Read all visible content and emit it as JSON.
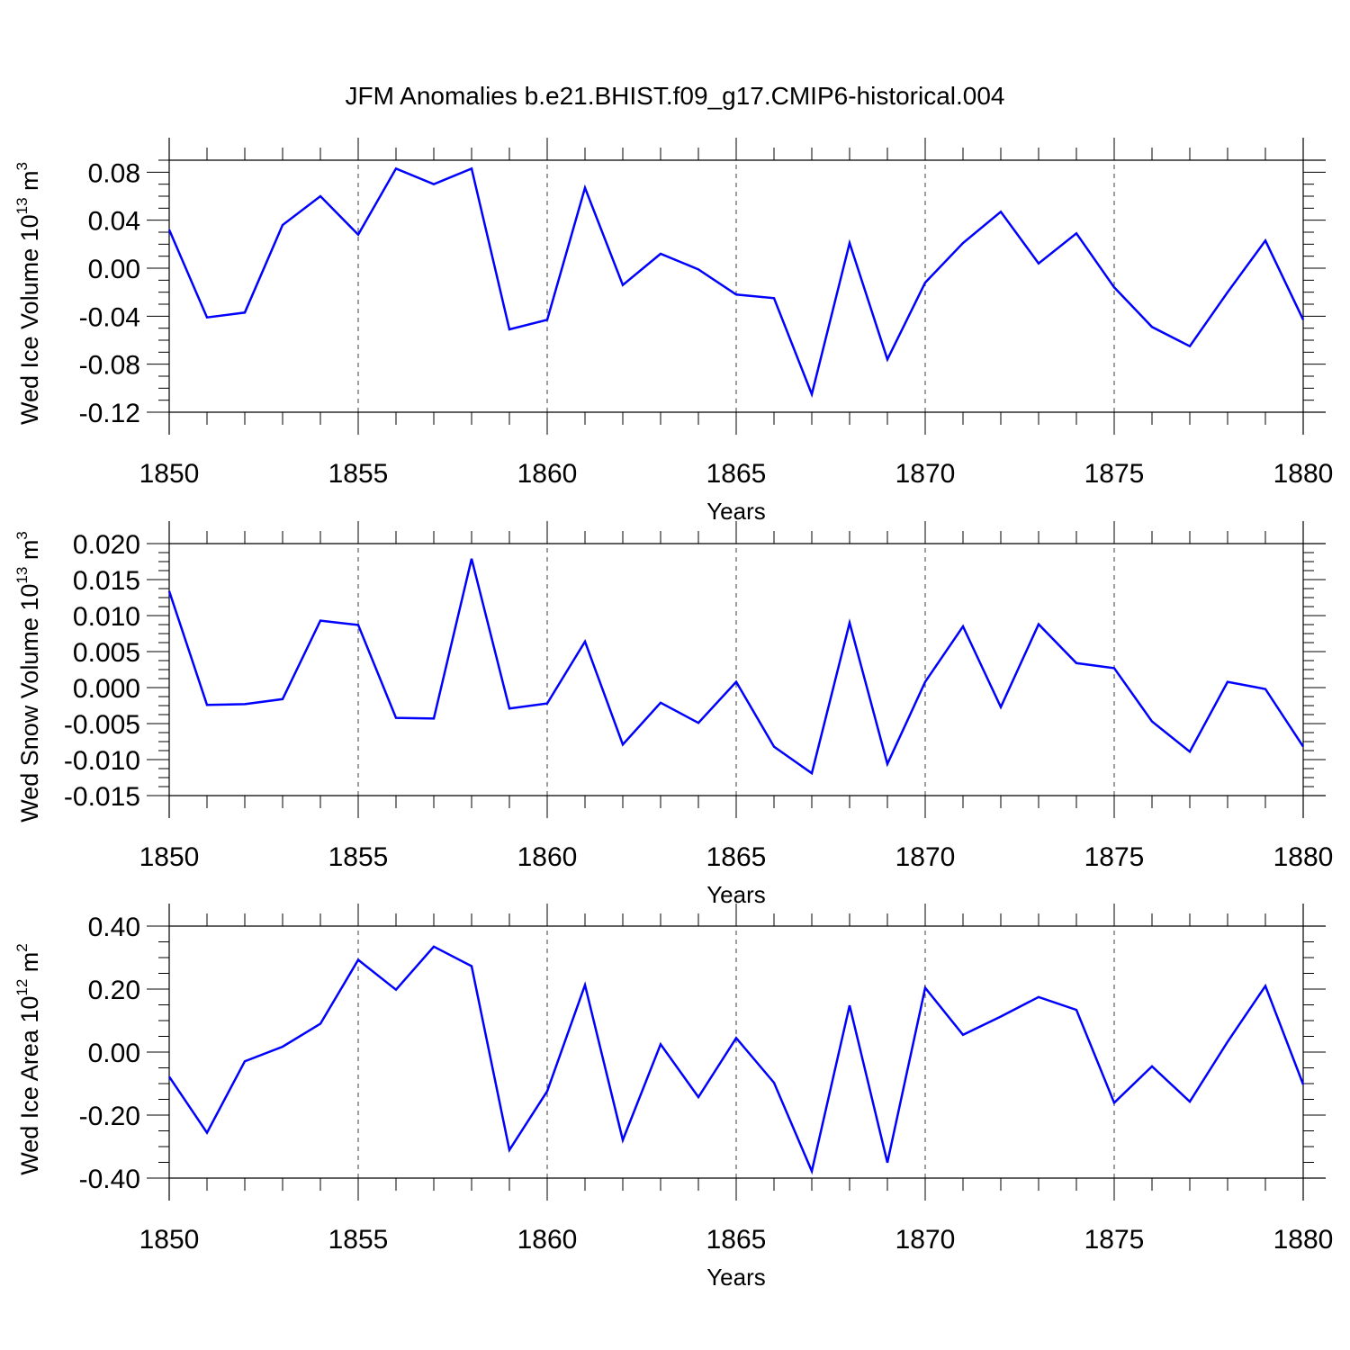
{
  "figure": {
    "title": "JFM Anomalies b.e21.BHIST.f09_g17.CMIP6-historical.004",
    "line_color": "#0000ff"
  },
  "chart_data": [
    {
      "type": "line",
      "ylabel": "Wed Ice Volume 10",
      "ylabel_sup": "13",
      "ylabel_unit": " m",
      "ylabel_unit_sup": "3",
      "xlabel": "Years",
      "xlim": [
        1850,
        1880
      ],
      "ylim": [
        -0.12,
        0.09
      ],
      "x_ticks": [
        1850,
        1855,
        1860,
        1865,
        1870,
        1875,
        1880
      ],
      "y_ticks": [
        -0.12,
        -0.08,
        -0.04,
        0.0,
        0.04,
        0.08
      ],
      "y_tick_labels": [
        "-0.12",
        "-0.08",
        "-0.04",
        "0.00",
        "0.04",
        "0.08"
      ],
      "grid": "vertical-dashed",
      "x": [
        1850,
        1851,
        1852,
        1853,
        1854,
        1855,
        1856,
        1857,
        1858,
        1859,
        1860,
        1861,
        1862,
        1863,
        1864,
        1865,
        1866,
        1867,
        1868,
        1869,
        1870,
        1871,
        1872,
        1873,
        1874,
        1875,
        1876,
        1877,
        1878,
        1879,
        1880
      ],
      "series": [
        {
          "values": [
            0.032,
            -0.041,
            -0.037,
            0.036,
            0.06,
            0.028,
            0.083,
            0.07,
            0.083,
            -0.051,
            -0.043,
            0.067,
            -0.014,
            0.012,
            -0.001,
            -0.022,
            -0.025,
            -0.105,
            0.021,
            -0.076,
            -0.012,
            0.021,
            0.047,
            0.004,
            0.029,
            -0.016,
            -0.049,
            -0.065,
            -0.02,
            0.023,
            -0.043
          ]
        }
      ]
    },
    {
      "type": "line",
      "ylabel": "Wed Snow Volume 10",
      "ylabel_sup": "13",
      "ylabel_unit": " m",
      "ylabel_unit_sup": "3",
      "xlabel": "Years",
      "xlim": [
        1850,
        1880
      ],
      "ylim": [
        -0.015,
        0.02
      ],
      "x_ticks": [
        1850,
        1855,
        1860,
        1865,
        1870,
        1875,
        1880
      ],
      "y_ticks": [
        -0.015,
        -0.01,
        -0.005,
        0.0,
        0.005,
        0.01,
        0.015,
        0.02
      ],
      "y_tick_labels": [
        "-0.015",
        "-0.010",
        "-0.005",
        "0.000",
        "0.005",
        "0.010",
        "0.015",
        "0.020"
      ],
      "grid": "vertical-dashed",
      "x": [
        1850,
        1851,
        1852,
        1853,
        1854,
        1855,
        1856,
        1857,
        1858,
        1859,
        1860,
        1861,
        1862,
        1863,
        1864,
        1865,
        1866,
        1867,
        1868,
        1869,
        1870,
        1871,
        1872,
        1873,
        1874,
        1875,
        1876,
        1877,
        1878,
        1879,
        1880
      ],
      "series": [
        {
          "values": [
            0.0134,
            -0.0024,
            -0.0023,
            -0.0016,
            0.0093,
            0.0087,
            -0.0042,
            -0.0043,
            0.0179,
            -0.0029,
            -0.0022,
            0.0064,
            -0.0079,
            -0.0021,
            -0.0049,
            0.0008,
            -0.0082,
            -0.0119,
            0.009,
            -0.0106,
            0.0008,
            0.0085,
            -0.0027,
            0.0088,
            0.0034,
            0.0027,
            -0.0047,
            -0.0089,
            0.0008,
            -0.0002,
            -0.0082
          ]
        }
      ]
    },
    {
      "type": "line",
      "ylabel": "Wed Ice Area 10",
      "ylabel_sup": "12",
      "ylabel_unit": " m",
      "ylabel_unit_sup": "2",
      "xlabel": "Years",
      "xlim": [
        1850,
        1880
      ],
      "ylim": [
        -0.4,
        0.4
      ],
      "x_ticks": [
        1850,
        1855,
        1860,
        1865,
        1870,
        1875,
        1880
      ],
      "y_ticks": [
        -0.4,
        -0.2,
        0.0,
        0.2,
        0.4
      ],
      "y_tick_labels": [
        "-0.40",
        "-0.20",
        "0.00",
        "0.20",
        "0.40"
      ],
      "grid": "vertical-dashed",
      "x": [
        1850,
        1851,
        1852,
        1853,
        1854,
        1855,
        1856,
        1857,
        1858,
        1859,
        1860,
        1861,
        1862,
        1863,
        1864,
        1865,
        1866,
        1867,
        1868,
        1869,
        1870,
        1871,
        1872,
        1873,
        1874,
        1875,
        1876,
        1877,
        1878,
        1879,
        1880
      ],
      "series": [
        {
          "values": [
            -0.078,
            -0.256,
            -0.029,
            0.017,
            0.09,
            0.293,
            0.198,
            0.335,
            0.273,
            -0.311,
            -0.124,
            0.213,
            -0.279,
            0.025,
            -0.143,
            0.045,
            -0.097,
            -0.378,
            0.148,
            -0.351,
            0.204,
            0.055,
            0.113,
            0.175,
            0.134,
            -0.161,
            -0.045,
            -0.157,
            0.033,
            0.21,
            -0.103
          ]
        }
      ]
    }
  ]
}
